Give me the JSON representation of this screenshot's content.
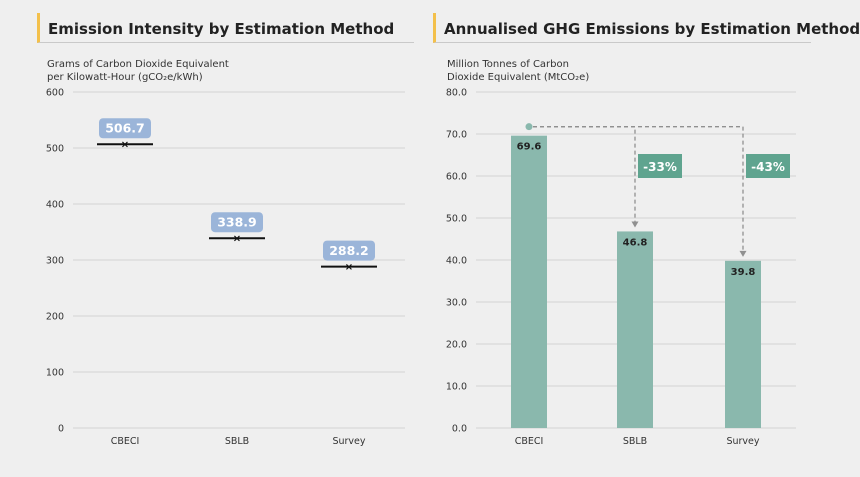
{
  "colors": {
    "accent": "#f3c04b",
    "grid": "#d3d3d3",
    "label_box": "#9bb5d9",
    "marker": "#111111",
    "bar": "#8ab8ad",
    "dashed": "#909090",
    "pct_box": "#5fa48f",
    "dot": "#8ab8ad"
  },
  "chart_data": [
    {
      "type": "scatter",
      "title": "Emission Intensity by Estimation Method",
      "ylabel_lines": [
        "Grams of Carbon Dioxide Equivalent",
        "per Kilowatt-Hour (gCO₂e/kWh)"
      ],
      "xlabel": "",
      "categories": [
        "CBECI",
        "SBLB",
        "Survey"
      ],
      "values": [
        506.7,
        338.9,
        288.2
      ],
      "value_labels": [
        "506.7",
        "338.9",
        "288.2"
      ],
      "ylim": [
        0,
        600
      ],
      "yticks": [
        0,
        100,
        200,
        300,
        400,
        500,
        600
      ],
      "ytick_labels": [
        "0",
        "100",
        "200",
        "300",
        "400",
        "500",
        "600"
      ],
      "grid": true
    },
    {
      "type": "bar",
      "title": "Annualised GHG Emissions by Estimation Method",
      "ylabel_lines": [
        "Million Tonnes of Carbon",
        "Dioxide Equivalent (MtCO₂e)"
      ],
      "xlabel": "",
      "categories": [
        "CBECI",
        "SBLB",
        "Survey"
      ],
      "values": [
        69.6,
        46.8,
        39.8
      ],
      "value_labels": [
        "69.6",
        "46.8",
        "39.8"
      ],
      "ylim": [
        0,
        80
      ],
      "yticks": [
        0,
        10,
        20,
        30,
        40,
        50,
        60,
        70,
        80
      ],
      "ytick_labels": [
        "0.0",
        "10.0",
        "20.0",
        "30.0",
        "40.0",
        "50.0",
        "60.0",
        "70.0",
        "80.0"
      ],
      "grid": true,
      "annotations": [
        {
          "target": "SBLB",
          "label": "-33%"
        },
        {
          "target": "Survey",
          "label": "-43%"
        }
      ]
    }
  ]
}
